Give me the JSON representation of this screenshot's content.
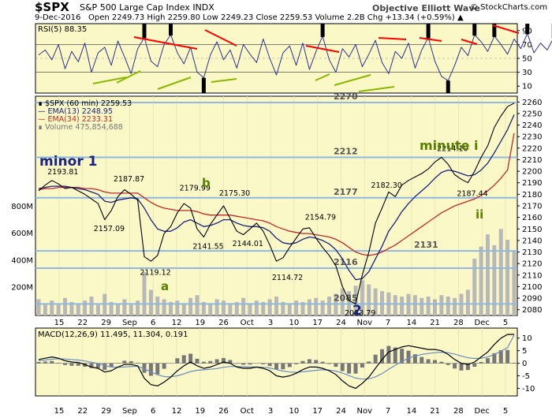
{
  "header": {
    "symbol": "$SPX",
    "name": "S&P 500 Large Cap Index",
    "exchange": "INDX",
    "date": "9-Dec-2016",
    "quote": "Open 2249.73  High 2259.80  Low 2249.23  Close 2259.53  Volume 2.2B  Chg +13.34 (+0.59%) ▲",
    "organization": "Objective Elliott Wave",
    "credit": "© StockCharts.com"
  },
  "colors": {
    "panel_bg": "#fbf8c8",
    "price_line": "#000000",
    "ema13": "#1a237e",
    "ema34": "#c62828",
    "level_line": "#90b8e0",
    "volume": "#b8b8b8",
    "label_green": "#5a7f00",
    "label_navy": "#1a237e",
    "rsi_line": "#2e3192",
    "macd_line": "#000000",
    "signal_line": "#6b8cc4",
    "hist": "#777777",
    "trend_red": "#ff0000",
    "trend_green": "#8ab800"
  },
  "chart_data": [
    {
      "type": "line",
      "panel": "rsi",
      "title": "RSI(5) 88.35",
      "ylim": [
        0,
        100
      ],
      "y_ticks": [
        10,
        30,
        50,
        70,
        90
      ],
      "ref_levels": [
        30,
        70
      ],
      "series": [
        {
          "name": "RSI(5)",
          "values": [
            55,
            62,
            48,
            70,
            35,
            60,
            45,
            72,
            30,
            58,
            66,
            40,
            75,
            52,
            28,
            64,
            80,
            46,
            38,
            70,
            84,
            58,
            42,
            66,
            30,
            22,
            55,
            74,
            48,
            62,
            36,
            70,
            56,
            44,
            78,
            50,
            26,
            58,
            68,
            40,
            72,
            34,
            60,
            82,
            48,
            30,
            64,
            52,
            70,
            38,
            56,
            76,
            44,
            28,
            60,
            50,
            72,
            36,
            62,
            80,
            46,
            24,
            18,
            40,
            66,
            54,
            84,
            74,
            60,
            82,
            70,
            56,
            78,
            64,
            86,
            58,
            72,
            62,
            80,
            50,
            68,
            76,
            44,
            70,
            60,
            34,
            22,
            46,
            62,
            78,
            70,
            88,
            92,
            80,
            90,
            84,
            88
          ]
        }
      ]
    },
    {
      "type": "line",
      "panel": "price",
      "legend": [
        "∎ $SPX (60 min) 2259.53",
        "— EMA(13) 2248.95",
        "— EMA(34) 2233.31",
        "∎ Volume 475,854,688"
      ],
      "x_ticks": [
        "15",
        "22",
        "29",
        "Sep",
        "6",
        "12",
        "19",
        "26",
        "Oct",
        "3",
        "10",
        "17",
        "24",
        "Nov",
        "7",
        "14",
        "21",
        "28",
        "Dec",
        "5"
      ],
      "ylim": [
        2075,
        2265
      ],
      "y_ticks": [
        2080,
        2090,
        2100,
        2110,
        2120,
        2130,
        2140,
        2150,
        2160,
        2170,
        2180,
        2190,
        2200,
        2210,
        2220,
        2230,
        2240,
        2250,
        2260
      ],
      "volume_ticks": [
        "200M",
        "400M",
        "600M",
        "800M"
      ],
      "levels": [
        {
          "value": 2270,
          "label": "2270"
        },
        {
          "value": 2212,
          "label": "2212"
        },
        {
          "value": 2177,
          "label": "2177"
        },
        {
          "value": 2131,
          "label": "2131"
        },
        {
          "value": 2116,
          "label": "2116"
        },
        {
          "value": 2085,
          "label": "2085"
        }
      ],
      "wave_labels": [
        "minor 1",
        "b",
        "a",
        "2",
        "minute i",
        "ii"
      ],
      "price_labels": [
        {
          "x": 3,
          "y": 2193.81,
          "label": "2193.81"
        },
        {
          "x": 13,
          "y": 2187.87,
          "label": "2187.87"
        },
        {
          "x": 10,
          "y": 2157.09,
          "label": "2157.09"
        },
        {
          "x": 17,
          "y": 2119.12,
          "label": "2119.12"
        },
        {
          "x": 23,
          "y": 2179.99,
          "label": "2179.99"
        },
        {
          "x": 25,
          "y": 2141.55,
          "label": "2141.55"
        },
        {
          "x": 29,
          "y": 2175.3,
          "label": "2175.30"
        },
        {
          "x": 31,
          "y": 2144.01,
          "label": "2144.01"
        },
        {
          "x": 37,
          "y": 2114.72,
          "label": "2114.72"
        },
        {
          "x": 42,
          "y": 2154.79,
          "label": "2154.79"
        },
        {
          "x": 48,
          "y": 2083.79,
          "label": "2083.79"
        },
        {
          "x": 52,
          "y": 2182.3,
          "label": "2182.30"
        },
        {
          "x": 62,
          "y": 2214.1,
          "label": "2214.10"
        },
        {
          "x": 65,
          "y": 2187.44,
          "label": "2187.44"
        }
      ],
      "series": [
        {
          "name": "$SPX (60 min)",
          "values": [
            2183,
            2188,
            2192,
            2189,
            2185,
            2186,
            2183,
            2180,
            2176,
            2172,
            2158,
            2166,
            2178,
            2184,
            2180,
            2175,
            2126,
            2122,
            2127,
            2146,
            2152,
            2164,
            2172,
            2168,
            2150,
            2143,
            2154,
            2162,
            2170,
            2159,
            2148,
            2145,
            2150,
            2155,
            2148,
            2136,
            2122,
            2125,
            2134,
            2142,
            2150,
            2151,
            2142,
            2134,
            2127,
            2118,
            2100,
            2088,
            2085,
            2110,
            2130,
            2155,
            2168,
            2182,
            2178,
            2188,
            2192,
            2195,
            2198,
            2202,
            2208,
            2212,
            2206,
            2197,
            2193,
            2190,
            2200,
            2212,
            2222,
            2238,
            2248,
            2256,
            2259
          ]
        },
        {
          "name": "EMA(13)",
          "values": [
            2185,
            2186,
            2187,
            2187,
            2187,
            2186,
            2185,
            2184,
            2182,
            2180,
            2174,
            2173,
            2175,
            2176,
            2177,
            2176,
            2168,
            2158,
            2150,
            2148,
            2148,
            2151,
            2156,
            2158,
            2155,
            2152,
            2153,
            2155,
            2158,
            2158,
            2155,
            2153,
            2152,
            2152,
            2151,
            2148,
            2142,
            2138,
            2137,
            2138,
            2141,
            2143,
            2142,
            2140,
            2137,
            2132,
            2124,
            2114,
            2106,
            2107,
            2113,
            2124,
            2135,
            2148,
            2156,
            2165,
            2172,
            2178,
            2183,
            2188,
            2194,
            2199,
            2201,
            2200,
            2198,
            2196,
            2197,
            2201,
            2207,
            2216,
            2226,
            2236,
            2249
          ]
        },
        {
          "name": "EMA(34)",
          "values": [
            2184,
            2185,
            2185,
            2186,
            2186,
            2186,
            2186,
            2185,
            2185,
            2184,
            2182,
            2181,
            2181,
            2181,
            2181,
            2181,
            2177,
            2173,
            2170,
            2168,
            2167,
            2166,
            2166,
            2166,
            2165,
            2163,
            2162,
            2162,
            2162,
            2162,
            2161,
            2160,
            2159,
            2158,
            2157,
            2155,
            2152,
            2150,
            2148,
            2147,
            2146,
            2146,
            2145,
            2144,
            2143,
            2141,
            2138,
            2134,
            2130,
            2128,
            2127,
            2128,
            2130,
            2133,
            2136,
            2140,
            2144,
            2148,
            2152,
            2156,
            2160,
            2164,
            2167,
            2170,
            2172,
            2174,
            2176,
            2179,
            2183,
            2188,
            2194,
            2201,
            2233
          ]
        },
        {
          "name": "Volume",
          "values": [
            1.2,
            0.9,
            1.1,
            0.8,
            1.3,
            1.0,
            0.9,
            1.1,
            1.4,
            0.8,
            1.6,
            1.0,
            0.9,
            1.2,
            0.8,
            1.1,
            3.2,
            1.9,
            1.4,
            1.2,
            1.0,
            1.1,
            0.9,
            1.3,
            1.5,
            1.0,
            0.9,
            1.2,
            1.1,
            0.8,
            1.0,
            1.3,
            0.9,
            1.1,
            1.0,
            1.2,
            1.4,
            1.0,
            0.9,
            1.1,
            1.0,
            1.2,
            1.3,
            1.1,
            1.4,
            1.6,
            2.0,
            1.8,
            2.2,
            2.6,
            2.3,
            2.0,
            1.8,
            1.7,
            1.5,
            1.4,
            1.6,
            1.5,
            1.3,
            1.4,
            1.2,
            1.5,
            1.4,
            1.3,
            1.6,
            1.9,
            4.2,
            5.1,
            6.0,
            5.2,
            6.4,
            5.6,
            4.8
          ]
        }
      ]
    },
    {
      "type": "line",
      "panel": "macd",
      "title": "MACD(12,26,9) 11.495, 11.304, 0.191",
      "ylim": [
        -13,
        14
      ],
      "y_ticks": [
        -10,
        -5,
        0,
        5,
        10
      ],
      "series": [
        {
          "name": "MACD",
          "values": [
            1.5,
            2,
            2.5,
            2,
            1,
            0.5,
            0.3,
            -0.5,
            -1.5,
            -2,
            -3.5,
            -3,
            -1.5,
            -0.5,
            -0.5,
            -1,
            -6,
            -8.5,
            -9,
            -7.5,
            -5.5,
            -3,
            -1,
            0.5,
            -1,
            -2,
            -1.5,
            -0.5,
            0.5,
            0,
            -1.5,
            -2,
            -2,
            -1.5,
            -2,
            -3,
            -5,
            -5.5,
            -5,
            -4,
            -2.5,
            -1.5,
            -1.5,
            -2,
            -3,
            -4.5,
            -7,
            -9,
            -10,
            -8,
            -5.5,
            -2,
            1.5,
            4.5,
            5.5,
            6.5,
            7,
            6.5,
            6,
            5.5,
            5.5,
            5,
            3.5,
            1.5,
            0,
            -0.5,
            0.5,
            2.5,
            4.5,
            7.5,
            10,
            11.5,
            11.5
          ]
        },
        {
          "name": "Signal",
          "values": [
            1,
            1.3,
            1.6,
            1.8,
            1.7,
            1.5,
            1.3,
            0.9,
            0.4,
            -0.1,
            -0.9,
            -1.5,
            -1.6,
            -1.5,
            -1.3,
            -1.2,
            -2.2,
            -3.5,
            -4.6,
            -5.3,
            -5.4,
            -5,
            -4.2,
            -3.3,
            -2.8,
            -2.6,
            -2.4,
            -2.1,
            -1.6,
            -1.3,
            -1.3,
            -1.4,
            -1.5,
            -1.5,
            -1.6,
            -1.9,
            -2.5,
            -3.1,
            -3.5,
            -3.6,
            -3.4,
            -3.1,
            -2.8,
            -2.6,
            -2.7,
            -3.1,
            -3.9,
            -4.9,
            -5.9,
            -6.3,
            -6.2,
            -5.4,
            -4.1,
            -2.4,
            -0.8,
            0.7,
            2,
            2.9,
            3.5,
            3.9,
            4.2,
            4.4,
            4.2,
            3.6,
            2.9,
            2.2,
            1.9,
            2,
            2.5,
            3.5,
            4.8,
            6.2,
            11.3
          ]
        },
        {
          "name": "Histogram",
          "values": [
            0.5,
            0.7,
            0.9,
            0.2,
            -0.7,
            -1,
            -1,
            -1.4,
            -1.9,
            -1.9,
            -2.6,
            -1.5,
            0.1,
            1,
            0.8,
            0.2,
            -3.8,
            -5,
            -4.4,
            -2.2,
            -0.1,
            2,
            3.2,
            3.8,
            1.8,
            0.6,
            0.9,
            1.6,
            2.1,
            1.3,
            -0.2,
            -0.6,
            -0.5,
            0,
            -0.4,
            -1.1,
            -2.5,
            -2.4,
            -1.5,
            -0.4,
            0.9,
            1.6,
            1.3,
            0.6,
            -0.3,
            -1.4,
            -3.1,
            -4.1,
            -4.1,
            -1.7,
            0.7,
            3.4,
            5.6,
            6.9,
            6.3,
            5.8,
            5,
            3.6,
            2.5,
            1.6,
            1.3,
            0.6,
            -0.7,
            -2.1,
            -2.9,
            -2.7,
            -1.4,
            0.5,
            2,
            4,
            5.2,
            5.3,
            0.2
          ]
        }
      ]
    }
  ]
}
